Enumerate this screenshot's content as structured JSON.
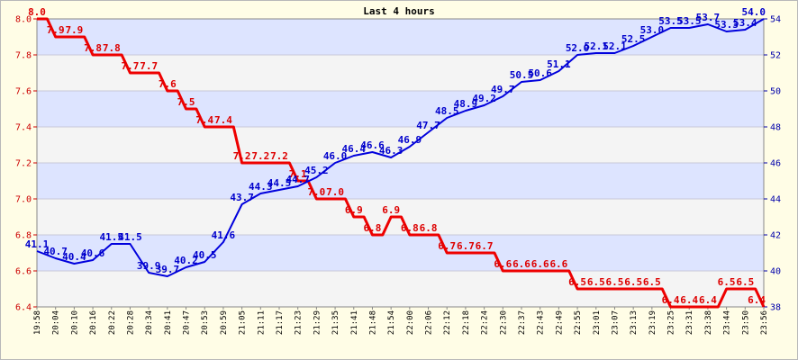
{
  "chart_data": {
    "type": "line",
    "title": "Last 4 hours",
    "x": [
      "19:58",
      "20:04",
      "20:10",
      "20:16",
      "20:22",
      "20:28",
      "20:34",
      "20:41",
      "20:47",
      "20:53",
      "20:59",
      "21:05",
      "21:11",
      "21:17",
      "21:23",
      "21:29",
      "21:35",
      "21:41",
      "21:48",
      "21:54",
      "22:00",
      "22:06",
      "22:12",
      "22:18",
      "22:24",
      "22:30",
      "22:37",
      "22:43",
      "22:49",
      "22:55",
      "23:01",
      "23:07",
      "23:13",
      "23:19",
      "23:25",
      "23:31",
      "23:38",
      "23:44",
      "23:50",
      "23:56"
    ],
    "y_left": {
      "min": 6.4,
      "max": 8.0,
      "ticks": [
        "6.4",
        "6.6",
        "6.8",
        "7.0",
        "7.2",
        "7.4",
        "7.6",
        "7.8",
        "8.0"
      ]
    },
    "y_right": {
      "min": 38,
      "max": 54,
      "ticks": [
        "38",
        "40",
        "42",
        "44",
        "46",
        "48",
        "50",
        "52",
        "54"
      ]
    },
    "series": [
      {
        "name": "left",
        "axis": "left",
        "color": "#ee0000",
        "values": [
          8.0,
          7.9,
          7.9,
          7.8,
          7.8,
          7.7,
          7.7,
          7.6,
          7.5,
          7.4,
          7.4,
          7.2,
          7.2,
          7.2,
          7.1,
          7.0,
          7.0,
          6.9,
          6.8,
          6.9,
          6.8,
          6.8,
          6.7,
          6.7,
          6.7,
          6.6,
          6.6,
          6.6,
          6.6,
          6.5,
          6.5,
          6.5,
          6.5,
          6.5,
          6.4,
          6.4,
          6.4,
          6.5,
          6.5,
          6.4
        ],
        "labels": [
          "8.0",
          "7.9",
          "7.9",
          "7.8",
          "7.8",
          "7.7",
          "7.7",
          "7.6",
          "7.5",
          "7.4",
          "7.4",
          "7.2",
          "7.2",
          "7.2",
          "7.1",
          "7.0",
          "7.0",
          "6.9",
          "6.8",
          "6.9",
          "6.8",
          "6.8",
          "6.7",
          "6.7",
          "6.7",
          "6.6",
          "6.6",
          "6.6",
          "6.6",
          "6.5",
          "6.5",
          "6.5",
          "6.5",
          "6.5",
          "6.4",
          "6.4",
          "6.4",
          "6.5",
          "6.5",
          "6.4"
        ]
      },
      {
        "name": "right",
        "axis": "right",
        "color": "#0000dd",
        "values": [
          41.1,
          40.7,
          40.4,
          40.6,
          41.5,
          41.5,
          39.9,
          39.7,
          40.2,
          40.5,
          41.6,
          43.7,
          44.3,
          44.5,
          44.7,
          45.2,
          46.0,
          46.4,
          46.6,
          46.3,
          46.9,
          47.7,
          48.5,
          48.9,
          49.2,
          49.7,
          50.5,
          50.6,
          51.1,
          52.0,
          52.1,
          52.1,
          52.5,
          53.0,
          53.5,
          53.5,
          53.7,
          53.3,
          53.4,
          54.0
        ],
        "labels": [
          "41.1",
          "40.7",
          "40.4",
          "40.6",
          "41.5",
          "41.5",
          "39.9",
          "39.7",
          "40.2",
          "40.5",
          "41.6",
          "43.7",
          "44.3",
          "44.5",
          "44.7",
          "45.2",
          "46.0",
          "46.4",
          "46.6",
          "46.3",
          "46.9",
          "47.7",
          "48.5",
          "48.9",
          "49.2",
          "49.7",
          "50.5",
          "50.6",
          "51.1",
          "52.0",
          "52.1",
          "52.1",
          "52.5",
          "53.0",
          "53.5",
          "53.5",
          "53.7",
          "53.3",
          "53.4",
          "54.0"
        ]
      }
    ]
  }
}
